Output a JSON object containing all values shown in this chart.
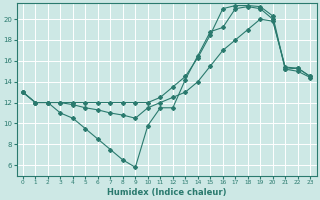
{
  "xlabel": "Humidex (Indice chaleur)",
  "background_color": "#cde8e5",
  "line_color": "#2a7a6e",
  "grid_color": "#ffffff",
  "xlim": [
    -0.5,
    23.5
  ],
  "ylim": [
    5.0,
    21.5
  ],
  "yticks": [
    6,
    8,
    10,
    12,
    14,
    16,
    18,
    20
  ],
  "xticks": [
    0,
    1,
    2,
    3,
    4,
    5,
    6,
    7,
    8,
    9,
    10,
    11,
    12,
    13,
    14,
    15,
    16,
    17,
    18,
    19,
    20,
    21,
    22,
    23
  ],
  "line1_x": [
    0,
    1,
    2,
    3,
    4,
    5,
    6,
    7,
    8,
    9,
    10,
    11,
    12,
    13,
    14,
    15,
    16,
    17,
    18,
    19,
    20,
    21,
    22,
    23
  ],
  "line1_y": [
    13.0,
    12.0,
    12.0,
    12.0,
    12.0,
    12.0,
    12.0,
    12.0,
    12.0,
    12.0,
    12.0,
    12.5,
    13.5,
    14.5,
    16.3,
    18.5,
    21.0,
    21.3,
    21.3,
    21.2,
    20.3,
    15.2,
    15.3,
    14.5
  ],
  "line2_x": [
    0,
    1,
    2,
    3,
    4,
    5,
    6,
    7,
    8,
    9,
    10,
    11,
    12,
    13,
    14,
    15,
    16,
    17,
    18,
    19,
    20,
    21,
    22,
    23
  ],
  "line2_y": [
    13.0,
    12.0,
    12.0,
    12.0,
    11.8,
    11.5,
    11.3,
    11.0,
    10.8,
    10.5,
    11.5,
    12.0,
    12.5,
    13.0,
    14.0,
    15.5,
    17.0,
    18.0,
    19.0,
    20.0,
    19.8,
    15.4,
    15.3,
    14.5
  ],
  "line3_x": [
    0,
    1,
    2,
    3,
    4,
    5,
    6,
    7,
    8,
    9,
    10,
    11,
    12,
    13,
    14,
    15,
    16,
    17,
    18,
    19,
    20,
    21,
    22,
    23
  ],
  "line3_y": [
    13.0,
    12.0,
    12.0,
    11.0,
    10.5,
    9.5,
    8.5,
    7.5,
    6.5,
    5.8,
    9.8,
    11.5,
    11.5,
    14.2,
    16.5,
    18.8,
    19.2,
    21.0,
    21.2,
    21.0,
    20.0,
    15.2,
    15.0,
    14.4
  ]
}
